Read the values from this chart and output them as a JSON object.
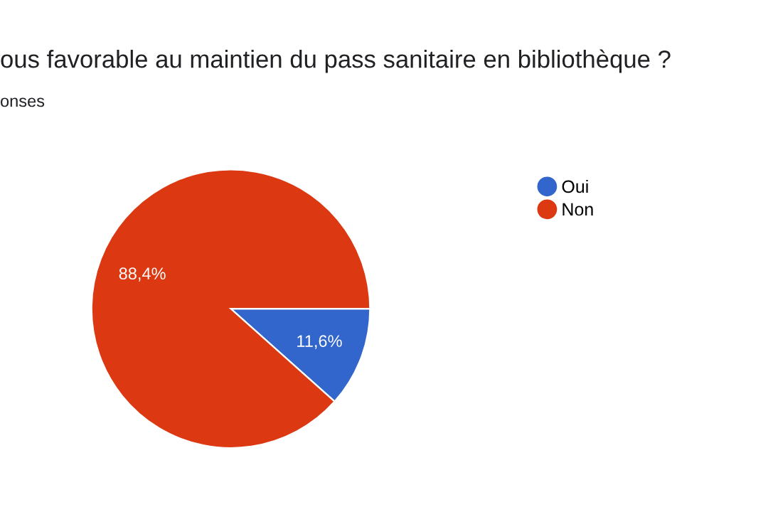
{
  "chart_data": {
    "type": "pie",
    "title": "ous favorable au maintien du pass sanitaire en bibliothèque ?",
    "subtitle": "onses",
    "categories": [
      "Oui",
      "Non"
    ],
    "values": [
      11.6,
      88.4
    ],
    "colors": [
      "#3366cc",
      "#dc3912"
    ],
    "value_labels": [
      "11,6%",
      "88,4%"
    ],
    "legend": "top right"
  }
}
